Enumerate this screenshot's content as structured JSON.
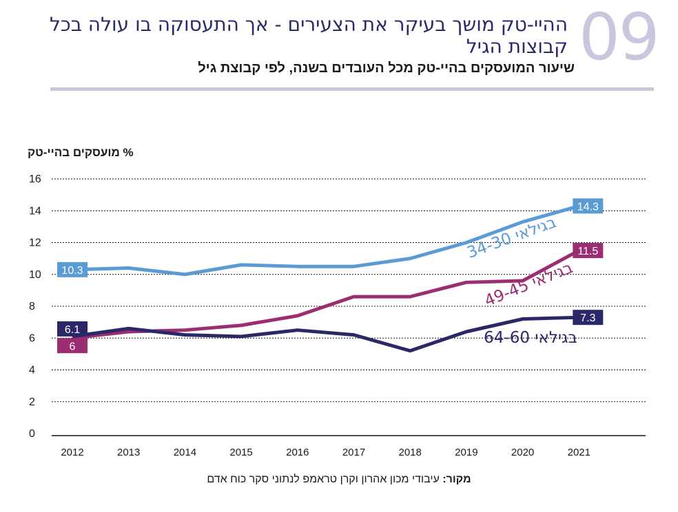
{
  "header": {
    "number": "09",
    "title": "ההיי-טק מושך בעיקר את הצעירים - אך התעסוקה בו עולה בכל קבוצות הגיל",
    "subtitle": "שיעור המועסקים בהיי-טק מכל העובדים בשנה, לפי קבוצת גיל"
  },
  "source": {
    "label": "מקור:",
    "text": " עיבודי מכון אהרון וקרן טראמפ לנתוני סקר כוח אדם"
  },
  "colors": {
    "accent_number": "#c9c6de",
    "title": "#2a2a6b",
    "age_30_34": "#5b9bd5",
    "age_45_49": "#9b2d72",
    "age_60_64": "#2b2868"
  },
  "chart_data": {
    "type": "line",
    "title": "שיעור המועסקים בהיי-טק מכל העובדים בשנה, לפי קבוצת גיל",
    "xlabel": "",
    "ylabel": "% מועסקים בהיי-טק",
    "x": [
      "2012",
      "2013",
      "2014",
      "2015",
      "2016",
      "2017",
      "2018",
      "2019",
      "2020",
      "2021"
    ],
    "ylim": [
      0,
      16
    ],
    "yticks": [
      0,
      2,
      4,
      6,
      8,
      10,
      12,
      14,
      16
    ],
    "grid": true,
    "legend": "inline-labels",
    "series": [
      {
        "name": "בגילאי 34-30",
        "color": "#5b9bd5",
        "values": [
          10.3,
          10.4,
          10.0,
          10.6,
          10.5,
          10.5,
          11.0,
          12.0,
          13.3,
          14.3
        ],
        "start_label": "10.3",
        "end_label": "14.3"
      },
      {
        "name": "בגילאי 49-45",
        "color": "#9b2d72",
        "values": [
          6.0,
          6.4,
          6.5,
          6.8,
          7.4,
          8.6,
          8.6,
          9.5,
          9.6,
          11.5
        ],
        "start_label": "6",
        "end_label": "11.5"
      },
      {
        "name": "בגילאי 64-60",
        "color": "#2b2868",
        "values": [
          6.1,
          6.6,
          6.2,
          6.1,
          6.5,
          6.2,
          5.2,
          6.4,
          7.2,
          7.3
        ],
        "start_label": "6.1",
        "end_label": "7.3"
      }
    ]
  }
}
